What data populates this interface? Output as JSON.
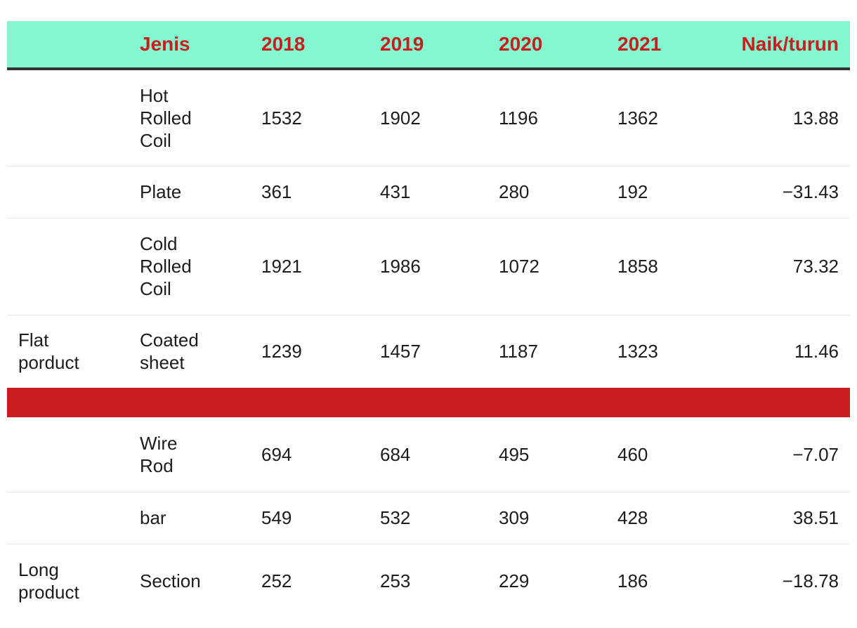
{
  "colors": {
    "header_bg": "#84f7d1",
    "header_text": "#c81e1e",
    "separator_band": "#c81e1e",
    "body_text": "#1d1d1d"
  },
  "chart_data": {
    "type": "table",
    "columns": [
      "",
      "Jenis",
      "2018",
      "2019",
      "2020",
      "2021",
      "Naik/turun"
    ],
    "groups": [
      {
        "group_label": "Flat porduct",
        "group_label_lines": [
          "Flat",
          "porduct"
        ],
        "rows": [
          {
            "jenis": "Hot Rolled Coil",
            "jenis_lines": [
              "Hot",
              "Rolled",
              "Coil"
            ],
            "y2018": "1532",
            "y2019": "1902",
            "y2020": "1196",
            "y2021": "1362",
            "change": "13.88"
          },
          {
            "jenis": "Plate",
            "jenis_lines": [
              "Plate"
            ],
            "y2018": "361",
            "y2019": "431",
            "y2020": "280",
            "y2021": "192",
            "change": "−31.43"
          },
          {
            "jenis": "Cold Rolled Coil",
            "jenis_lines": [
              "Cold",
              "Rolled",
              "Coil"
            ],
            "y2018": "1921",
            "y2019": "1986",
            "y2020": "1072",
            "y2021": "1858",
            "change": "73.32"
          },
          {
            "jenis": "Coated sheet",
            "jenis_lines": [
              "Coated",
              "sheet"
            ],
            "y2018": "1239",
            "y2019": "1457",
            "y2020": "1187",
            "y2021": "1323",
            "change": "11.46"
          }
        ]
      },
      {
        "group_label": "Long product",
        "group_label_lines": [
          "Long",
          "product"
        ],
        "rows": [
          {
            "jenis": "Wire Rod",
            "jenis_lines": [
              "Wire",
              "Rod"
            ],
            "y2018": "694",
            "y2019": "684",
            "y2020": "495",
            "y2021": "460",
            "change": "−7.07"
          },
          {
            "jenis": "bar",
            "jenis_lines": [
              "bar"
            ],
            "y2018": "549",
            "y2019": "532",
            "y2020": "309",
            "y2021": "428",
            "change": "38.51"
          },
          {
            "jenis": "Section",
            "jenis_lines": [
              "Section"
            ],
            "y2018": "252",
            "y2019": "253",
            "y2020": "229",
            "y2021": "186",
            "change": "−18.78"
          }
        ]
      }
    ]
  }
}
